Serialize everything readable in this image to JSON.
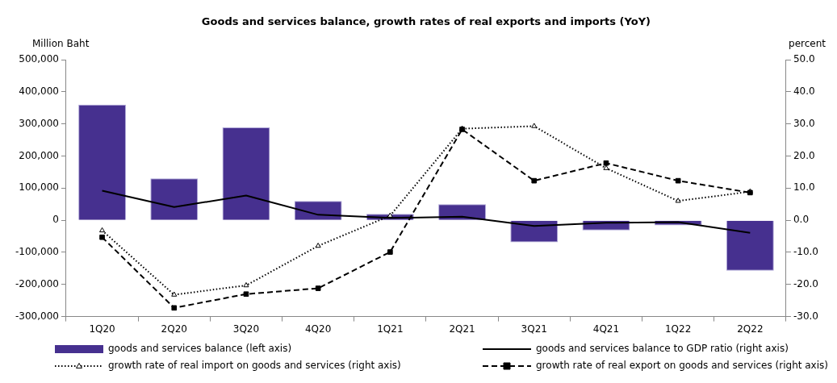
{
  "chart_data": {
    "type": "bar",
    "title": "Goods and services balance, growth rates of real exports and imports (YoY)",
    "ylabel": "Million Baht",
    "y2label": "percent",
    "categories": [
      "1Q20",
      "2Q20",
      "3Q20",
      "4Q20",
      "1Q21",
      "2Q21",
      "3Q21",
      "4Q21",
      "1Q22",
      "2Q22"
    ],
    "series": [
      {
        "name": "goods and services balance (left axis)",
        "color": "#46308f",
        "values": [
          360000,
          130000,
          289000,
          60000,
          20000,
          50000,
          -69000,
          -32000,
          -16000,
          -157000
        ]
      },
      {
        "name": "goods and services balance to GDP ratio (right axis)",
        "type": "line",
        "axis": "y2",
        "color": "#000000",
        "marker": "none",
        "line_style": "solid",
        "values": [
          9.2,
          4.1,
          7.7,
          1.7,
          0.7,
          1.1,
          -1.8,
          -0.8,
          -0.6,
          -3.9
        ]
      },
      {
        "name": "growth rate of real import on goods and services (right axis)",
        "type": "line",
        "axis": "y2",
        "color": "#000000",
        "marker": "triangle",
        "line_style": "dotted",
        "values": [
          -3.2,
          -23.2,
          -20.3,
          -8.0,
          1.4,
          28.5,
          29.3,
          16.2,
          6.0,
          8.9
        ]
      },
      {
        "name": "growth rate of real export on goods and services (right axis)",
        "type": "line",
        "axis": "y2",
        "color": "#000000",
        "marker": "square",
        "line_style": "dashed",
        "values": [
          -5.3,
          -27.3,
          -23.0,
          -21.2,
          -9.9,
          28.3,
          12.3,
          17.8,
          12.3,
          8.6
        ]
      }
    ],
    "ylim": [
      -300000,
      500000
    ],
    "yticks": [
      {
        "value": -300000,
        "label": "-300,000"
      },
      {
        "value": -200000,
        "label": "-200,000"
      },
      {
        "value": -100000,
        "label": "-100,000"
      },
      {
        "value": 0,
        "label": "0"
      },
      {
        "value": 100000,
        "label": "100,000"
      },
      {
        "value": 200000,
        "label": "200,000"
      },
      {
        "value": 300000,
        "label": "300,000"
      },
      {
        "value": 400000,
        "label": "400,000"
      },
      {
        "value": 500000,
        "label": "500,000"
      }
    ],
    "y2lim": [
      -30,
      50
    ],
    "y2ticks": [
      {
        "value": -30,
        "label": "-30.0"
      },
      {
        "value": -20,
        "label": "-20.0"
      },
      {
        "value": -10,
        "label": "-10.0"
      },
      {
        "value": 0,
        "label": "0.0"
      },
      {
        "value": 10,
        "label": "10.0"
      },
      {
        "value": 20,
        "label": "20.0"
      },
      {
        "value": 30,
        "label": "30.0"
      },
      {
        "value": 40,
        "label": "40.0"
      },
      {
        "value": 50,
        "label": "50.0"
      }
    ],
    "grid": false,
    "legend": "bottom"
  }
}
